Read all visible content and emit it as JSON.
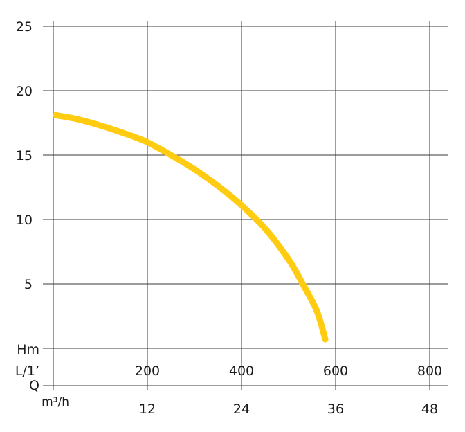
{
  "chart_data": {
    "type": "line",
    "title": "",
    "series_color": "#ffcc12",
    "y_axis": {
      "label": "Hm",
      "ticks": [
        5,
        10,
        15,
        20,
        25
      ],
      "range": [
        0,
        25
      ]
    },
    "x_axis_flow_lpm": {
      "label": "L/1’",
      "ticks": [
        200,
        400,
        600,
        800
      ],
      "range": [
        0,
        800
      ]
    },
    "x_axis_flow_m3h": {
      "label": "Q",
      "unit": "m³/h",
      "ticks": [
        12,
        24,
        36,
        48
      ],
      "range": [
        0,
        48
      ]
    },
    "grid": true,
    "series": [
      {
        "x": [
          5,
          50,
          100,
          150,
          200,
          250,
          300,
          350,
          400,
          450,
          500,
          530,
          560,
          578
        ],
        "y": [
          18.1,
          17.8,
          17.3,
          16.7,
          16.0,
          15.0,
          13.9,
          12.6,
          11.1,
          9.3,
          6.9,
          5.0,
          2.9,
          0.7
        ]
      }
    ]
  }
}
